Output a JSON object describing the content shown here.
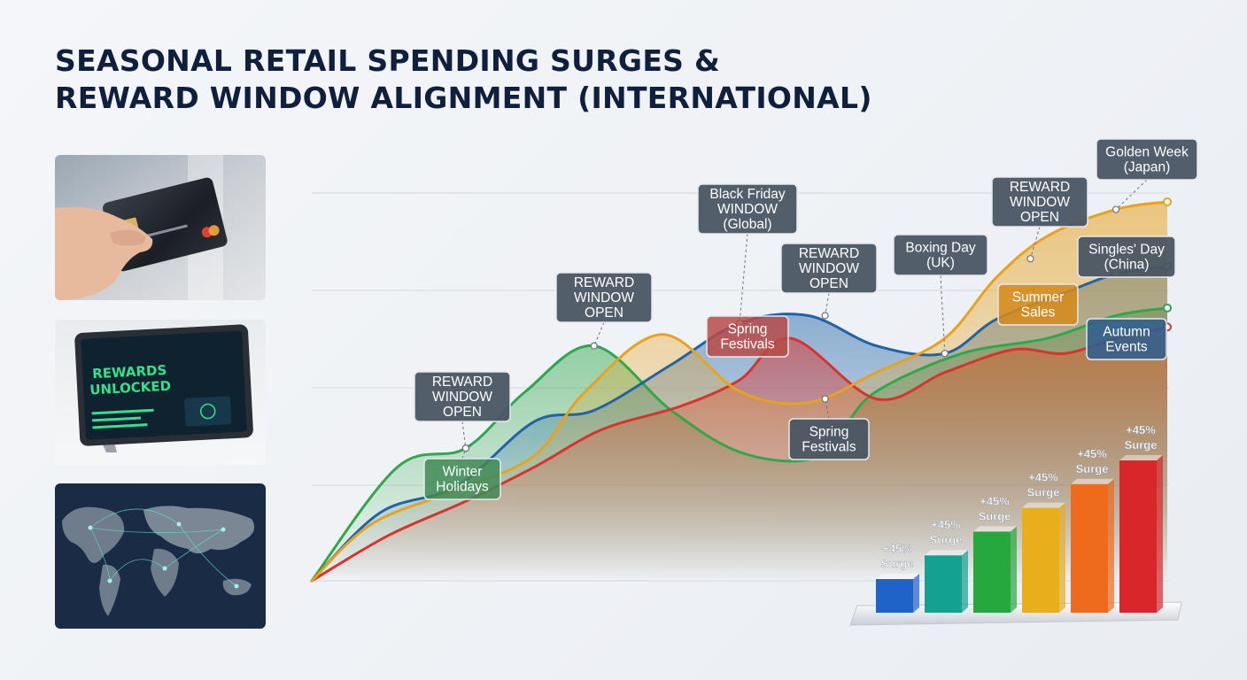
{
  "title_lines": [
    "SEASONAL RETAIL SPENDING SURGES &",
    "REWARD WINDOW ALIGNMENT (INTERNATIONAL)"
  ],
  "photos": {
    "tablet_screen_text": [
      "REWARDS",
      "UNLOCKED"
    ]
  },
  "colors": {
    "green": "#2ea84a",
    "blue": "#1f63a8",
    "red": "#d9342b",
    "amber": "#e8a21e",
    "callout_bg": "#4a5563",
    "callout_border": "#e6e9ee"
  },
  "chart_data": {
    "type": "area",
    "title": "SEASONAL RETAIL SPENDING SURGES & REWARD WINDOW ALIGNMENT (INTERNATIONAL)",
    "grid": true,
    "x_range": [
      0,
      100
    ],
    "y_range": [
      0,
      100
    ],
    "series": [
      {
        "color": "#2ea84a",
        "points": [
          [
            0,
            0
          ],
          [
            10,
            30
          ],
          [
            18,
            35
          ],
          [
            25,
            50
          ],
          [
            33,
            62
          ],
          [
            42,
            45
          ],
          [
            50,
            34
          ],
          [
            58,
            32
          ],
          [
            62,
            40
          ],
          [
            66,
            50
          ],
          [
            76,
            60
          ],
          [
            86,
            64
          ],
          [
            94,
            70
          ],
          [
            100,
            72
          ]
        ]
      },
      {
        "color": "#1f63a8",
        "points": [
          [
            0,
            0
          ],
          [
            8,
            18
          ],
          [
            17,
            25
          ],
          [
            26,
            42
          ],
          [
            33,
            45
          ],
          [
            42,
            57
          ],
          [
            50,
            68
          ],
          [
            58,
            70
          ],
          [
            66,
            62
          ],
          [
            74,
            60
          ],
          [
            80,
            69
          ],
          [
            88,
            76
          ],
          [
            94,
            81
          ],
          [
            100,
            83
          ]
        ]
      },
      {
        "color": "#d9342b",
        "points": [
          [
            0,
            0
          ],
          [
            9,
            12
          ],
          [
            18,
            21
          ],
          [
            26,
            30
          ],
          [
            34,
            40
          ],
          [
            43,
            46
          ],
          [
            50,
            53
          ],
          [
            56,
            64
          ],
          [
            66,
            48
          ],
          [
            74,
            55
          ],
          [
            82,
            61
          ],
          [
            88,
            60
          ],
          [
            94,
            64
          ],
          [
            100,
            67
          ]
        ]
      },
      {
        "color": "#e8a21e",
        "points": [
          [
            0,
            0
          ],
          [
            7,
            15
          ],
          [
            17,
            24
          ],
          [
            26,
            33
          ],
          [
            32,
            50
          ],
          [
            41,
            65
          ],
          [
            50,
            50
          ],
          [
            58,
            47
          ],
          [
            66,
            55
          ],
          [
            74,
            64
          ],
          [
            80,
            80
          ],
          [
            86,
            91
          ],
          [
            94,
            98
          ],
          [
            100,
            100
          ]
        ]
      }
    ],
    "callouts": [
      {
        "text": [
          "REWARD",
          "WINDOW",
          "OPEN"
        ],
        "anchor": [
          18,
          35
        ],
        "style": "dark"
      },
      {
        "text": [
          "Winter",
          "Holidays"
        ],
        "anchor": [
          18,
          35
        ],
        "style": "green"
      },
      {
        "text": [
          "REWARD",
          "WINDOW",
          "OPEN"
        ],
        "anchor": [
          33,
          62
        ],
        "style": "dark"
      },
      {
        "text": [
          "Black Friday",
          "WINDOW",
          "(Global)"
        ],
        "anchor": [
          50,
          68
        ],
        "style": "dark"
      },
      {
        "text": [
          "Spring",
          "Festivals"
        ],
        "anchor": [
          50,
          68
        ],
        "style": "red"
      },
      {
        "text": [
          "REWARD",
          "WINDOW",
          "OPEN"
        ],
        "anchor": [
          60,
          70
        ],
        "style": "dark"
      },
      {
        "text": [
          "Spring",
          "Festivals"
        ],
        "anchor": [
          60,
          48
        ],
        "style": "dark"
      },
      {
        "text": [
          "Boxing Day",
          "(UK)"
        ],
        "anchor": [
          74,
          60
        ],
        "style": "dark"
      },
      {
        "text": [
          "REWARD",
          "WINDOW",
          "OPEN"
        ],
        "anchor": [
          84,
          85
        ],
        "style": "dark"
      },
      {
        "text": [
          "Summer",
          "Sales"
        ],
        "anchor": [
          84,
          76
        ],
        "style": "amber"
      },
      {
        "text": [
          "Golden Week",
          "(Japan)"
        ],
        "anchor": [
          94,
          98
        ],
        "style": "dark"
      },
      {
        "text": [
          "Singles' Day",
          "(China)"
        ],
        "anchor": [
          94,
          81
        ],
        "style": "dark"
      },
      {
        "text": [
          "Autumn",
          "Events"
        ],
        "anchor": [
          94,
          66
        ],
        "style": "blue"
      }
    ],
    "bars": [
      {
        "label": [
          "+45%",
          "Surge"
        ],
        "value": 1,
        "color": "#1f63c8"
      },
      {
        "label": [
          "+45%",
          "Surge"
        ],
        "value": 2,
        "color": "#14a192"
      },
      {
        "label": [
          "+45%",
          "Surge"
        ],
        "value": 3,
        "color": "#27a83c"
      },
      {
        "label": [
          "+45%",
          "Surge"
        ],
        "value": 4,
        "color": "#e8ae1c"
      },
      {
        "label": [
          "+45%",
          "Surge"
        ],
        "value": 5,
        "color": "#ee6a1c"
      },
      {
        "label": [
          "+45%",
          "Surge"
        ],
        "value": 6,
        "color": "#d8262b"
      }
    ]
  }
}
